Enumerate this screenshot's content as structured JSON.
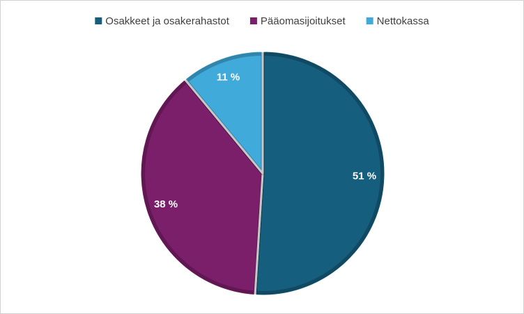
{
  "chart_data": {
    "type": "pie",
    "categories": [
      "Osakkeet ja osakerahastot",
      "Pääomasijoitukset",
      "Nettokassa"
    ],
    "values": [
      51,
      38,
      11
    ],
    "value_labels": [
      "51 %",
      "38 %",
      "11 %"
    ],
    "colors": [
      "#165e7e",
      "#7b1f6a",
      "#40aadb"
    ],
    "legend": "top"
  }
}
